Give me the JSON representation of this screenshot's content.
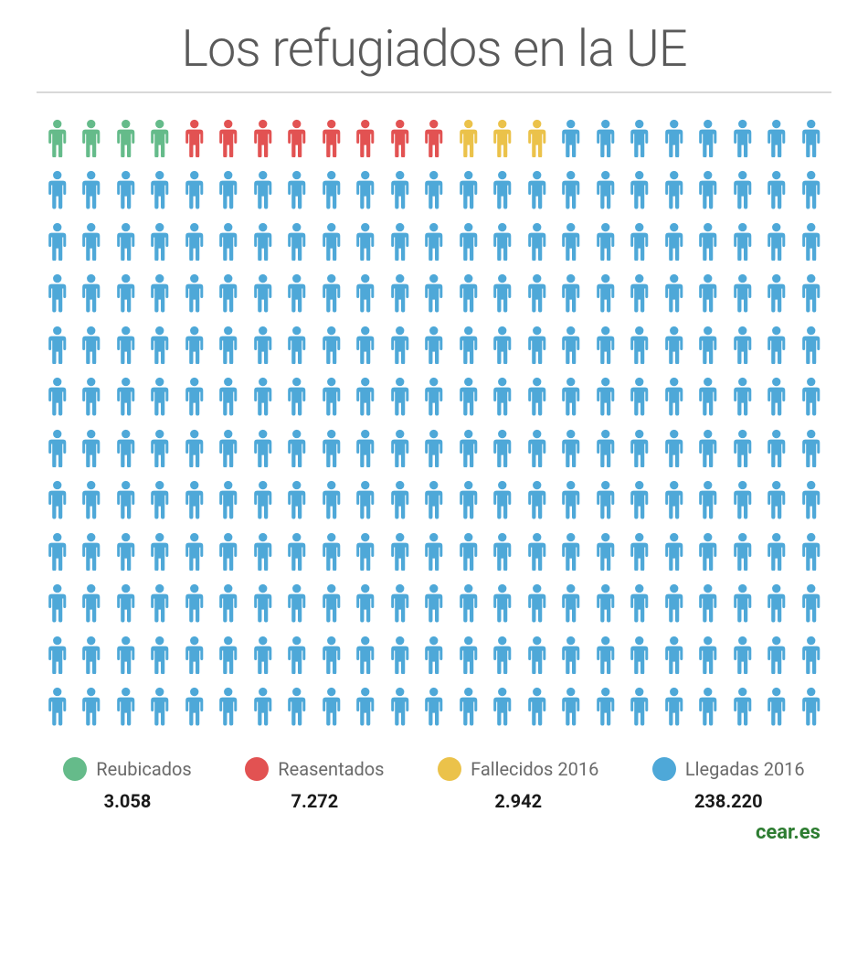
{
  "title": "Los refugiados en la UE",
  "source": {
    "label": "cear.es",
    "color": "#2e7d32"
  },
  "pictogram": {
    "type": "pictogram",
    "rows": 12,
    "cols": 23,
    "icon": "person",
    "series": [
      {
        "key": "reubicados",
        "count": 4,
        "color": "#65bb8a"
      },
      {
        "key": "reasentados",
        "count": 8,
        "color": "#e25252"
      },
      {
        "key": "fallecidos",
        "count": 3,
        "color": "#ebc24a"
      },
      {
        "key": "llegadas",
        "count": 261,
        "color": "#4ea8d8"
      }
    ],
    "background_color": "#ffffff",
    "row_gap": 14,
    "col_gap": 12
  },
  "legend": [
    {
      "swatch": "#65bb8a",
      "label": "Reubicados",
      "value": "3.058"
    },
    {
      "swatch": "#e25252",
      "label": "Reasentados",
      "value": "7.272"
    },
    {
      "swatch": "#ebc24a",
      "label": "Fallecidos 2016",
      "value": "2.942"
    },
    {
      "swatch": "#4ea8d8",
      "label": "Llegadas 2016",
      "value": "238.220"
    }
  ],
  "typography": {
    "title_fontsize": 56,
    "title_weight": 300,
    "title_color": "#5a5a5a",
    "legend_label_fontsize": 20,
    "legend_label_color": "#6a6a6a",
    "legend_value_fontsize": 20,
    "legend_value_color": "#1a1a1a",
    "source_fontsize": 22
  },
  "divider_color": "#d8d8d8"
}
